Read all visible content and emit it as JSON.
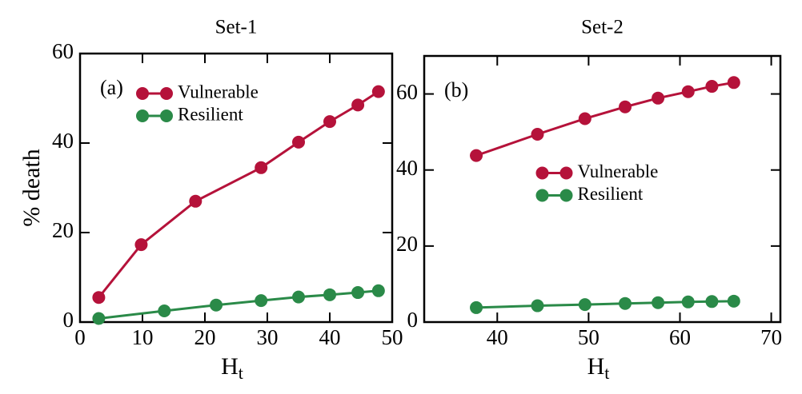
{
  "chart_data": [
    {
      "type": "line",
      "title": "Set-1",
      "annotation": "(a)",
      "xlabel": "H",
      "xlabel_sub": "t",
      "ylabel": "% death",
      "xlim": [
        0,
        50
      ],
      "xticks": [
        0,
        10,
        20,
        30,
        40,
        50
      ],
      "ylim": [
        0,
        60
      ],
      "yticks": [
        0,
        20,
        40,
        60
      ],
      "legend": "upper center",
      "series": [
        {
          "name": "Vulnerable",
          "color": "#b5123a",
          "x": [
            3,
            9.8,
            18.5,
            29,
            35,
            40,
            44.5,
            47.8
          ],
          "values": [
            5.5,
            17.3,
            27,
            34.5,
            40.2,
            44.8,
            48.5,
            51.5
          ]
        },
        {
          "name": "Resilient",
          "color": "#2a8a48",
          "x": [
            3,
            13.5,
            21.8,
            29,
            35,
            40,
            44.5,
            47.8
          ],
          "values": [
            0.8,
            2.5,
            3.8,
            4.8,
            5.6,
            6.1,
            6.6,
            7.0
          ]
        }
      ]
    },
    {
      "type": "line",
      "title": "Set-2",
      "annotation": "(b)",
      "xlabel": "H",
      "xlabel_sub": "t",
      "xlim": [
        32,
        71
      ],
      "xticks": [
        40,
        50,
        60,
        70
      ],
      "ylim": [
        0,
        70
      ],
      "yticks": [
        0,
        20,
        40,
        60
      ],
      "legend": "center",
      "series": [
        {
          "name": "Vulnerable",
          "color": "#b5123a",
          "x": [
            37.7,
            44.4,
            49.6,
            54,
            57.6,
            60.9,
            63.5,
            65.9
          ],
          "values": [
            43.8,
            49.4,
            53.5,
            56.6,
            58.9,
            60.6,
            62,
            63
          ]
        },
        {
          "name": "Resilient",
          "color": "#2a8a48",
          "x": [
            37.7,
            44.4,
            49.6,
            54,
            57.6,
            60.9,
            63.5,
            65.9
          ],
          "values": [
            3.8,
            4.3,
            4.6,
            4.9,
            5.1,
            5.3,
            5.4,
            5.5
          ]
        }
      ]
    }
  ]
}
